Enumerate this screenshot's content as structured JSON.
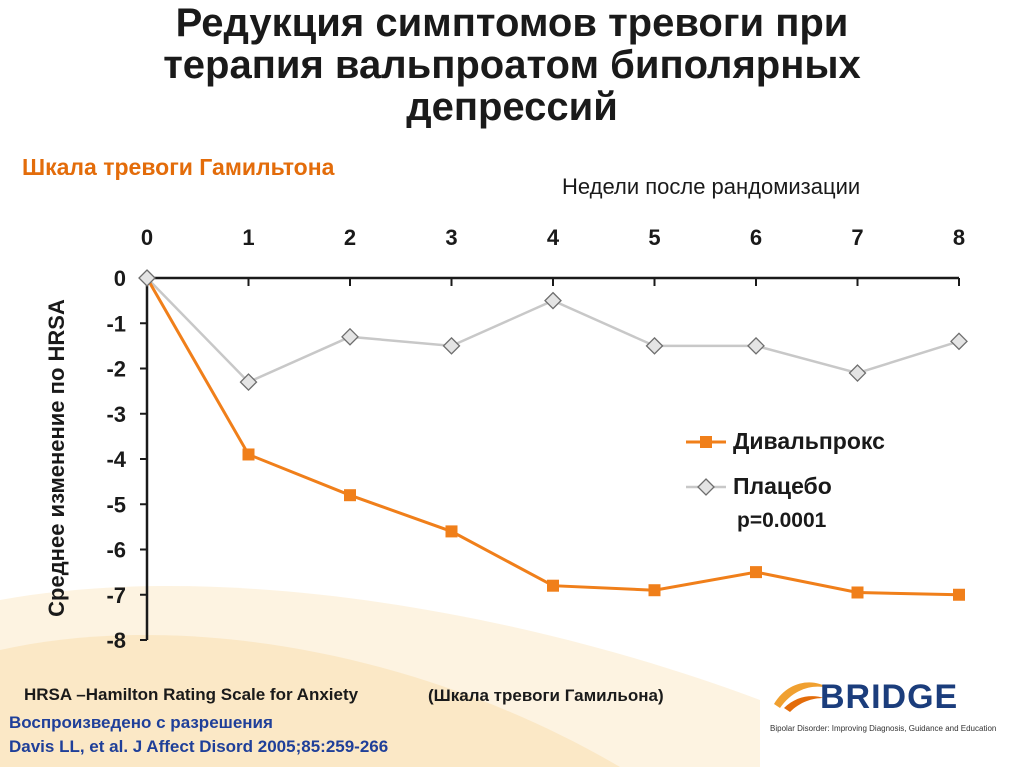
{
  "slide": {
    "title_line1": "Редукция симптомов тревоги при",
    "title_line2": "терапия вальпроатом биполярных",
    "title_line3": "депрессий",
    "subtitle": "Шкала тревоги Гамильтона"
  },
  "footer": {
    "hrsa_note": "HRSA –Hamilton Rating Scale for Anxiety",
    "hrsa_note_ru": "(Шкала тревоги Гамильона)",
    "credit_line1": "Воспроизведено с разрешения",
    "credit_line2": "Davis LL, et al.  J Affect Disord 2005;85:259-266",
    "logo_word": "BRIDGE",
    "logo_tagline": "Bipolar Disorder: Improving Diagnosis, Guidance and Education"
  },
  "colors": {
    "divalproex": "#f07f1a",
    "placebo": "#c8c8c8",
    "axis": "#1a1a1a",
    "subtitle": "#e36c0a",
    "credit": "#1f3f99"
  },
  "chart_data": {
    "type": "line",
    "xlabel": "Недели после рандомизации",
    "ylabel": "Среднее изменение по HRSA",
    "x": [
      0,
      1,
      2,
      3,
      4,
      5,
      6,
      7,
      8
    ],
    "xlim": [
      0,
      8
    ],
    "ylim": [
      -8,
      0
    ],
    "yticks": [
      0,
      -1,
      -2,
      -3,
      -4,
      -5,
      -6,
      -7,
      -8
    ],
    "x_axis_position": "top",
    "grid": false,
    "legend_position": "right",
    "series": [
      {
        "name": "Дивальпрокс",
        "marker": "square",
        "values": [
          0,
          -3.9,
          -4.8,
          -5.6,
          -6.8,
          -6.9,
          -6.5,
          -6.95,
          -7.0
        ]
      },
      {
        "name": "Плацебо",
        "marker": "diamond",
        "values": [
          0,
          -2.3,
          -1.3,
          -1.5,
          -0.5,
          -1.5,
          -1.5,
          -2.1,
          -1.4
        ]
      }
    ],
    "annotations": [
      "p=0.0001"
    ]
  }
}
